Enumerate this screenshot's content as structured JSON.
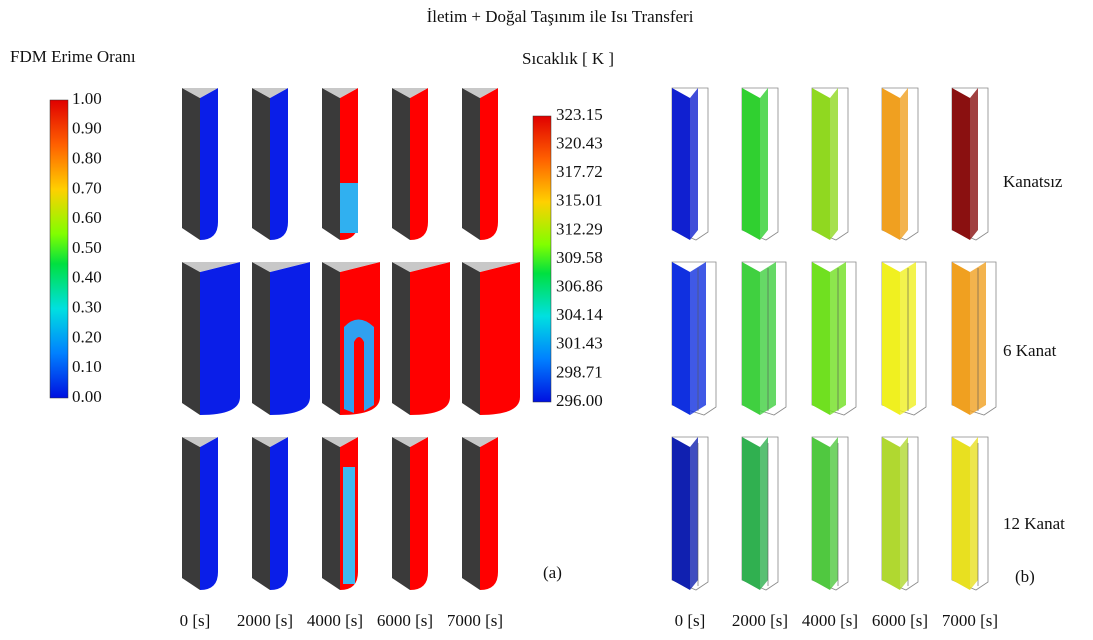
{
  "title": "İletim + Doğal Taşınım ile Isı Transferi",
  "panel_a": {
    "colorbar_title": "FDM Erime Oranı",
    "colorbar_labels": [
      "1.00",
      "0.90",
      "0.80",
      "0.70",
      "0.60",
      "0.50",
      "0.40",
      "0.30",
      "0.20",
      "0.10",
      "0.00"
    ],
    "time_labels": [
      "0 [s]",
      "2000 [s]",
      "4000 [s]",
      "6000 [s]",
      "7000 [s]"
    ],
    "panel_label": "(a)"
  },
  "panel_b": {
    "colorbar_title": "Sıcaklık [ K ]",
    "colorbar_labels": [
      "323.15",
      "320.43",
      "317.72",
      "315.01",
      "312.29",
      "309.58",
      "306.86",
      "304.14",
      "301.43",
      "298.71",
      "296.00"
    ],
    "time_labels": [
      "0 [s]",
      "2000 [s]",
      "4000 [s]",
      "6000 [s]",
      "7000 [s]"
    ],
    "panel_label": "(b)",
    "row_labels": [
      "Kanatsız",
      "6 Kanat",
      "12 Kanat"
    ]
  }
}
